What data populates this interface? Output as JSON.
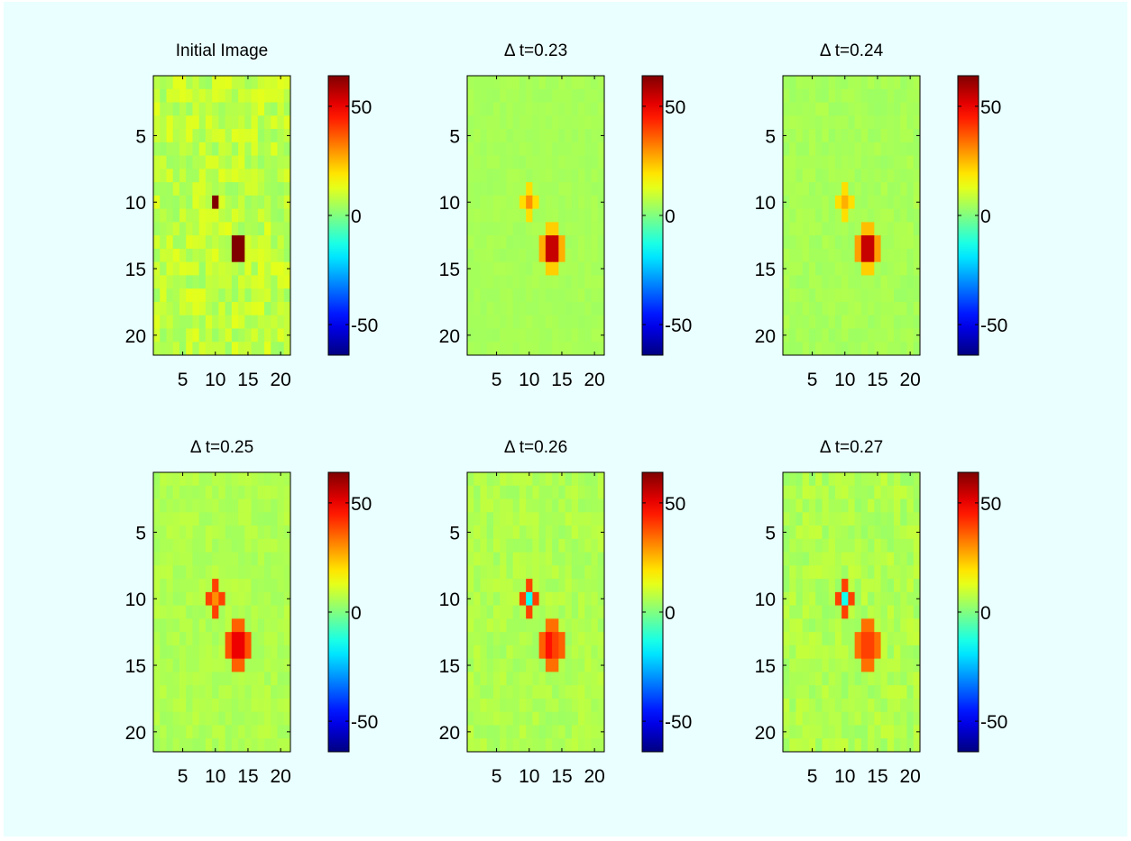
{
  "chart_data": [
    {
      "type": "heatmap",
      "title": "Initial Image",
      "xticks": [
        "5",
        "10",
        "15",
        "20"
      ],
      "yticks": [
        "5",
        "10",
        "15",
        "20"
      ],
      "colorbar_ticks": [
        "50",
        "0",
        "-50"
      ],
      "clim": [
        -64,
        64
      ],
      "base_value": 8,
      "noise_amplitude": 5,
      "spots": [
        {
          "row": 10,
          "col": 10,
          "value": 64
        },
        {
          "row": 13,
          "col": 13,
          "value": 64
        },
        {
          "row": 13,
          "col": 14,
          "value": 64
        },
        {
          "row": 14,
          "col": 13,
          "value": 64
        },
        {
          "row": 14,
          "col": 14,
          "value": 64
        }
      ]
    },
    {
      "type": "heatmap",
      "title": "Δ t=0.23",
      "xticks": [
        "5",
        "10",
        "15",
        "20"
      ],
      "yticks": [
        "5",
        "10",
        "15",
        "20"
      ],
      "colorbar_ticks": [
        "50",
        "0",
        "-50"
      ],
      "clim": [
        -64,
        64
      ],
      "base_value": 5,
      "noise_amplitude": 1,
      "spots": [
        {
          "row": 9,
          "col": 10,
          "value": 20
        },
        {
          "row": 10,
          "col": 9,
          "value": 20
        },
        {
          "row": 10,
          "col": 10,
          "value": 30
        },
        {
          "row": 10,
          "col": 11,
          "value": 20
        },
        {
          "row": 11,
          "col": 10,
          "value": 20
        },
        {
          "row": 12,
          "col": 13,
          "value": 22
        },
        {
          "row": 12,
          "col": 14,
          "value": 22
        },
        {
          "row": 13,
          "col": 12,
          "value": 26
        },
        {
          "row": 13,
          "col": 13,
          "value": 55
        },
        {
          "row": 13,
          "col": 14,
          "value": 55
        },
        {
          "row": 13,
          "col": 15,
          "value": 26
        },
        {
          "row": 14,
          "col": 12,
          "value": 26
        },
        {
          "row": 14,
          "col": 13,
          "value": 55
        },
        {
          "row": 14,
          "col": 14,
          "value": 55
        },
        {
          "row": 14,
          "col": 15,
          "value": 26
        },
        {
          "row": 15,
          "col": 13,
          "value": 22
        },
        {
          "row": 15,
          "col": 14,
          "value": 22
        }
      ]
    },
    {
      "type": "heatmap",
      "title": "Δ t=0.24",
      "xticks": [
        "5",
        "10",
        "15",
        "20"
      ],
      "yticks": [
        "5",
        "10",
        "15",
        "20"
      ],
      "colorbar_ticks": [
        "50",
        "0",
        "-50"
      ],
      "clim": [
        -64,
        64
      ],
      "base_value": 5,
      "noise_amplitude": 1.5,
      "spots": [
        {
          "row": 9,
          "col": 10,
          "value": 20
        },
        {
          "row": 10,
          "col": 9,
          "value": 20
        },
        {
          "row": 10,
          "col": 10,
          "value": 26
        },
        {
          "row": 10,
          "col": 11,
          "value": 20
        },
        {
          "row": 11,
          "col": 10,
          "value": 20
        },
        {
          "row": 12,
          "col": 13,
          "value": 24
        },
        {
          "row": 12,
          "col": 14,
          "value": 24
        },
        {
          "row": 13,
          "col": 12,
          "value": 28
        },
        {
          "row": 13,
          "col": 13,
          "value": 55
        },
        {
          "row": 13,
          "col": 14,
          "value": 55
        },
        {
          "row": 13,
          "col": 15,
          "value": 28
        },
        {
          "row": 14,
          "col": 12,
          "value": 28
        },
        {
          "row": 14,
          "col": 13,
          "value": 55
        },
        {
          "row": 14,
          "col": 14,
          "value": 55
        },
        {
          "row": 14,
          "col": 15,
          "value": 28
        },
        {
          "row": 15,
          "col": 13,
          "value": 22
        },
        {
          "row": 15,
          "col": 14,
          "value": 22
        }
      ]
    },
    {
      "type": "heatmap",
      "title": "Δ t=0.25",
      "xticks": [
        "5",
        "10",
        "15",
        "20"
      ],
      "yticks": [
        "5",
        "10",
        "15",
        "20"
      ],
      "colorbar_ticks": [
        "50",
        "0",
        "-50"
      ],
      "clim": [
        -64,
        64
      ],
      "base_value": 6,
      "noise_amplitude": 2,
      "spots": [
        {
          "row": 9,
          "col": 10,
          "value": 40
        },
        {
          "row": 10,
          "col": 9,
          "value": 40
        },
        {
          "row": 10,
          "col": 10,
          "value": 30
        },
        {
          "row": 10,
          "col": 11,
          "value": 40
        },
        {
          "row": 11,
          "col": 10,
          "value": 40
        },
        {
          "row": 12,
          "col": 13,
          "value": 36
        },
        {
          "row": 12,
          "col": 14,
          "value": 36
        },
        {
          "row": 13,
          "col": 12,
          "value": 38
        },
        {
          "row": 13,
          "col": 13,
          "value": 50
        },
        {
          "row": 13,
          "col": 14,
          "value": 50
        },
        {
          "row": 13,
          "col": 15,
          "value": 38
        },
        {
          "row": 14,
          "col": 12,
          "value": 38
        },
        {
          "row": 14,
          "col": 13,
          "value": 50
        },
        {
          "row": 14,
          "col": 14,
          "value": 50
        },
        {
          "row": 14,
          "col": 15,
          "value": 38
        },
        {
          "row": 15,
          "col": 13,
          "value": 36
        },
        {
          "row": 15,
          "col": 14,
          "value": 36
        }
      ]
    },
    {
      "type": "heatmap",
      "title": "Δ t=0.26",
      "xticks": [
        "5",
        "10",
        "15",
        "20"
      ],
      "yticks": [
        "5",
        "10",
        "15",
        "20"
      ],
      "colorbar_ticks": [
        "50",
        "0",
        "-50"
      ],
      "clim": [
        -64,
        64
      ],
      "base_value": 6,
      "noise_amplitude": 2.5,
      "spots": [
        {
          "row": 9,
          "col": 10,
          "value": 40
        },
        {
          "row": 10,
          "col": 9,
          "value": 40
        },
        {
          "row": 10,
          "col": 10,
          "value": -14
        },
        {
          "row": 10,
          "col": 11,
          "value": 40
        },
        {
          "row": 11,
          "col": 10,
          "value": 40
        },
        {
          "row": 12,
          "col": 13,
          "value": 34
        },
        {
          "row": 12,
          "col": 14,
          "value": 34
        },
        {
          "row": 13,
          "col": 12,
          "value": 36
        },
        {
          "row": 13,
          "col": 13,
          "value": 46
        },
        {
          "row": 13,
          "col": 14,
          "value": 40
        },
        {
          "row": 13,
          "col": 15,
          "value": 36
        },
        {
          "row": 14,
          "col": 12,
          "value": 36
        },
        {
          "row": 14,
          "col": 13,
          "value": 46
        },
        {
          "row": 14,
          "col": 14,
          "value": 40
        },
        {
          "row": 14,
          "col": 15,
          "value": 36
        },
        {
          "row": 15,
          "col": 13,
          "value": 34
        },
        {
          "row": 15,
          "col": 14,
          "value": 34
        }
      ]
    },
    {
      "type": "heatmap",
      "title": "Δ t=0.27",
      "xticks": [
        "5",
        "10",
        "15",
        "20"
      ],
      "yticks": [
        "5",
        "10",
        "15",
        "20"
      ],
      "colorbar_ticks": [
        "50",
        "0",
        "-50"
      ],
      "clim": [
        -64,
        64
      ],
      "base_value": 6,
      "noise_amplitude": 3,
      "spots": [
        {
          "row": 9,
          "col": 10,
          "value": 40
        },
        {
          "row": 10,
          "col": 9,
          "value": 40
        },
        {
          "row": 10,
          "col": 10,
          "value": -14
        },
        {
          "row": 10,
          "col": 11,
          "value": 40
        },
        {
          "row": 11,
          "col": 10,
          "value": 40
        },
        {
          "row": 12,
          "col": 13,
          "value": 34
        },
        {
          "row": 12,
          "col": 14,
          "value": 34
        },
        {
          "row": 13,
          "col": 12,
          "value": 34
        },
        {
          "row": 13,
          "col": 13,
          "value": 40
        },
        {
          "row": 13,
          "col": 14,
          "value": 40
        },
        {
          "row": 13,
          "col": 15,
          "value": 34
        },
        {
          "row": 14,
          "col": 12,
          "value": 34
        },
        {
          "row": 14,
          "col": 13,
          "value": 40
        },
        {
          "row": 14,
          "col": 14,
          "value": 40
        },
        {
          "row": 14,
          "col": 15,
          "value": 34
        },
        {
          "row": 15,
          "col": 13,
          "value": 34
        },
        {
          "row": 15,
          "col": 14,
          "value": 34
        }
      ]
    }
  ]
}
